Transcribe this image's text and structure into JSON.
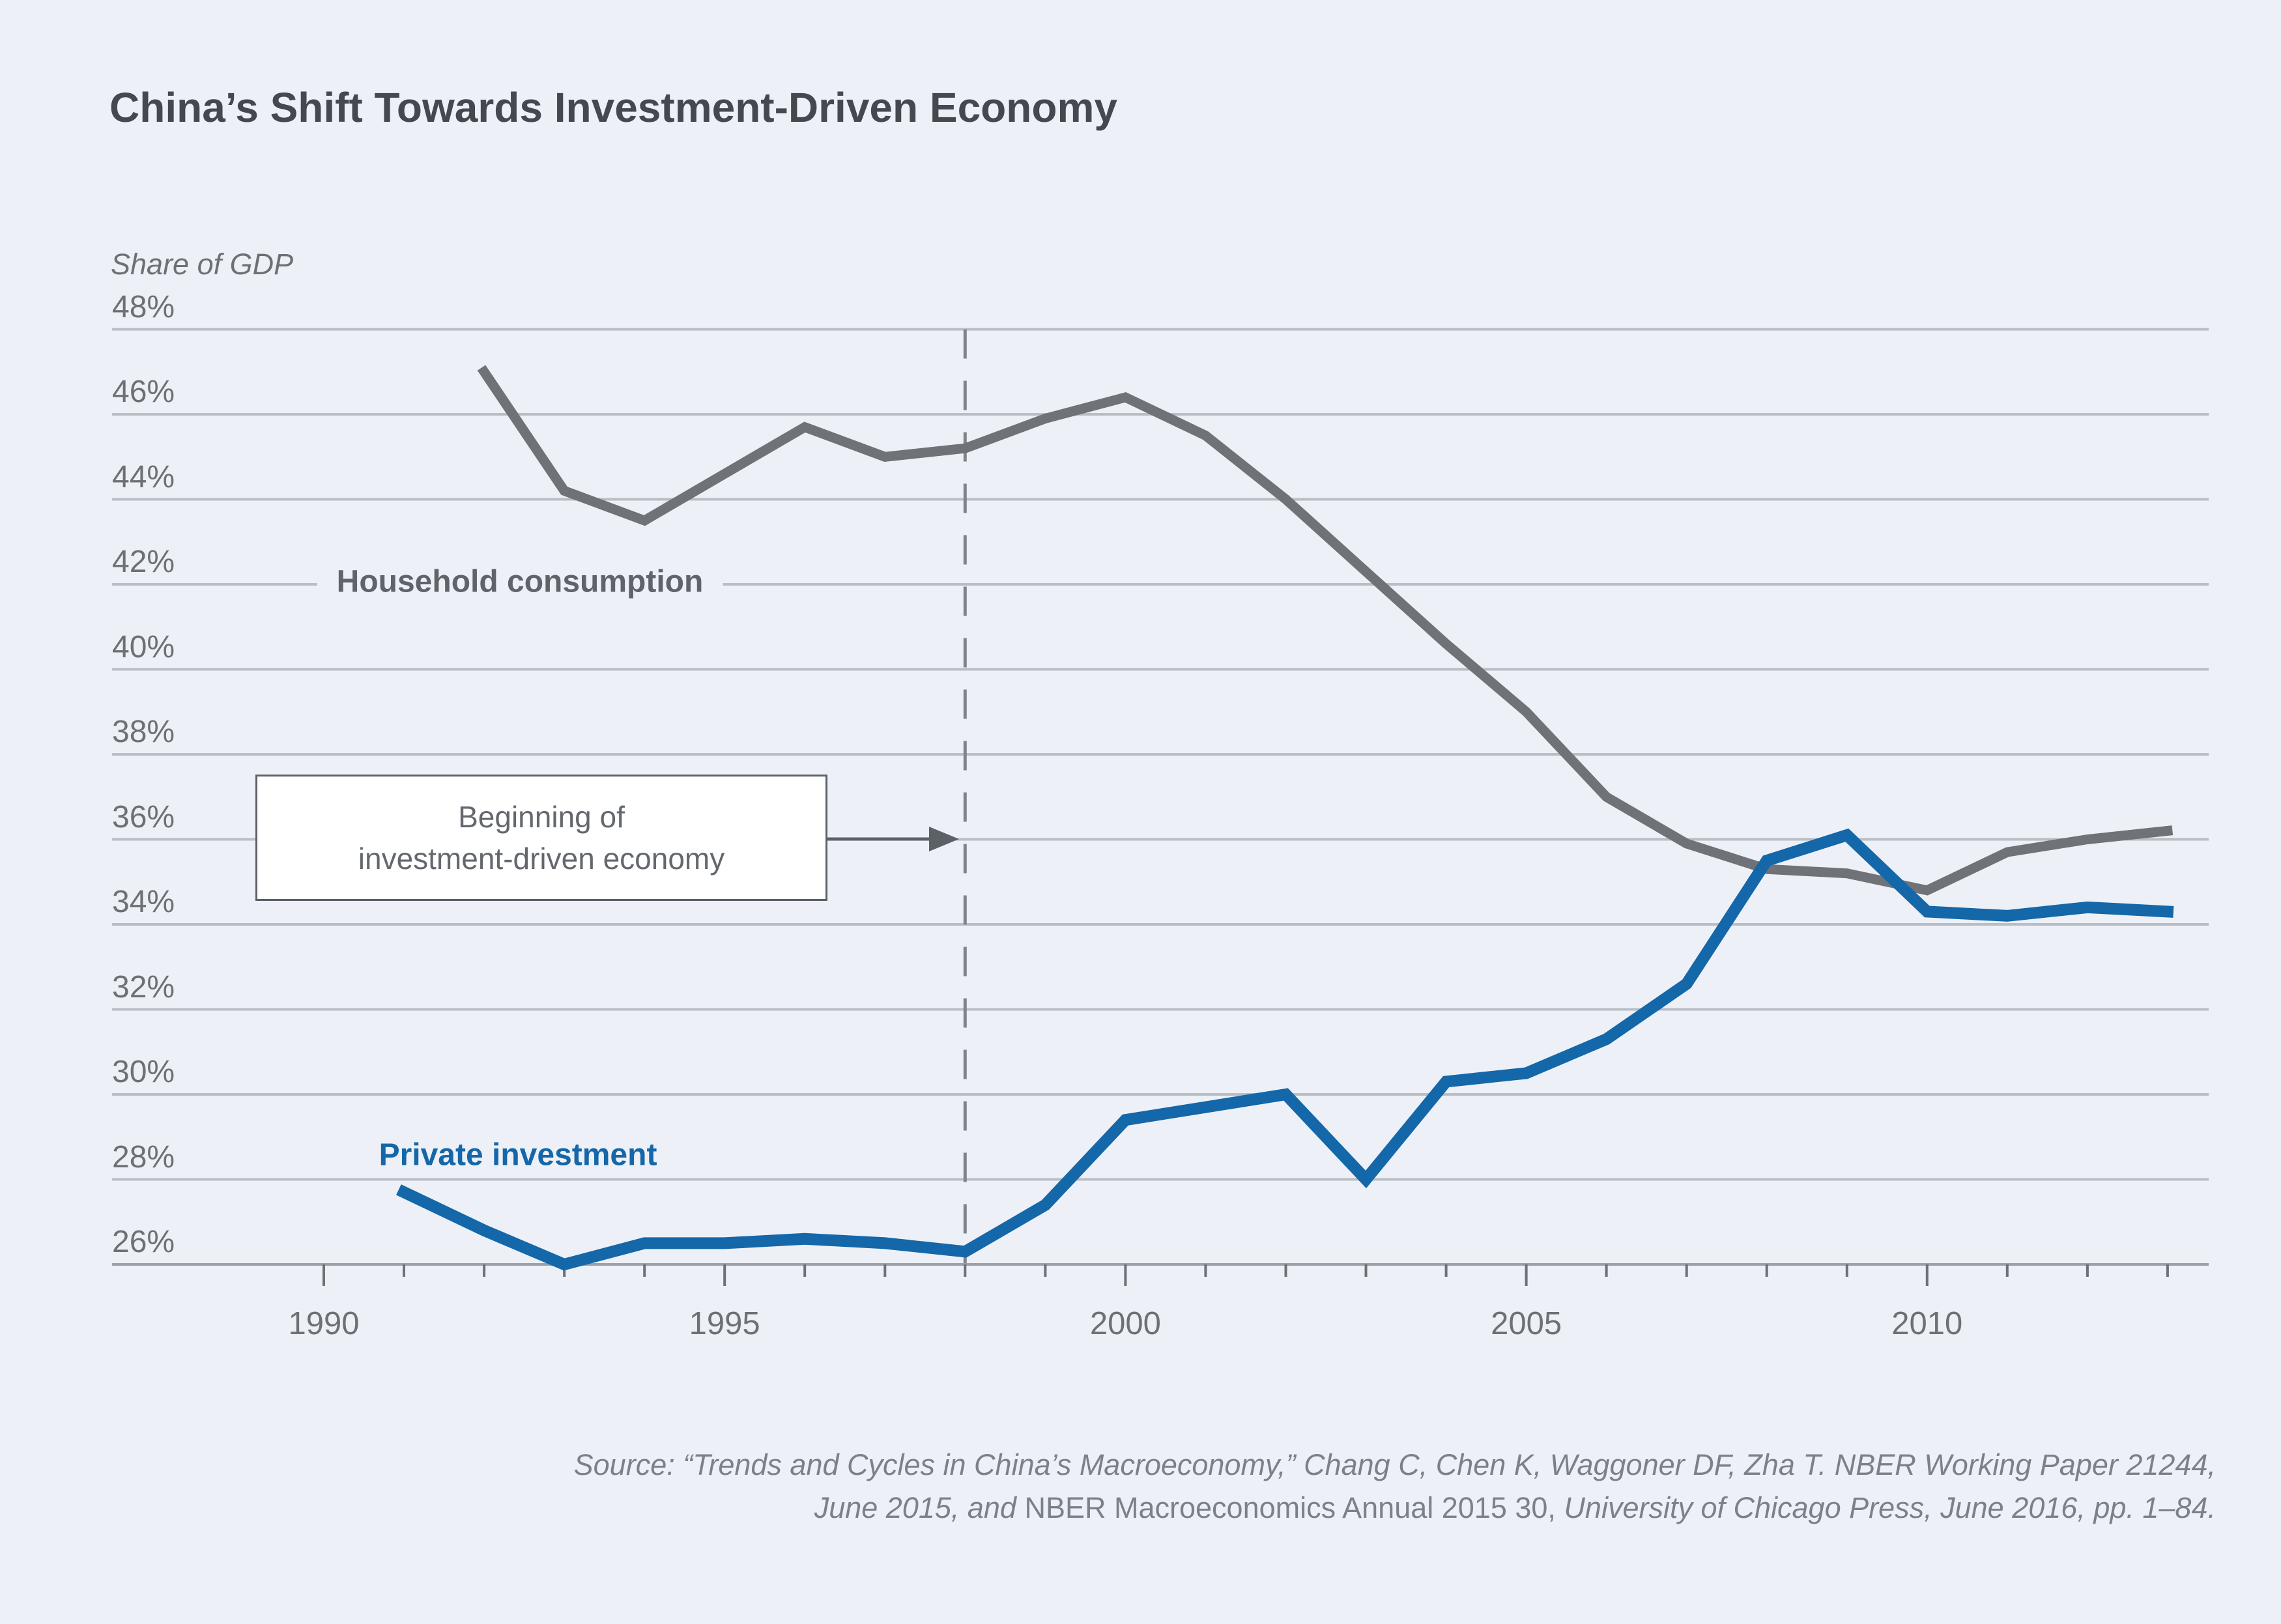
{
  "title": "China’s Shift Towards Investment-Driven Economy",
  "y_axis_caption": "Share of GDP",
  "labels": {
    "household": "Household consumption",
    "private": "Private investment"
  },
  "annotation": {
    "line1": "Beginning of",
    "line2": "investment-driven economy"
  },
  "source": {
    "line1": "Source: “Trends and Cycles in China’s Macroeconomy,” Chang C, Chen K, Waggoner DF, Zha T. NBER Working Paper 21244,",
    "line2_parts": [
      {
        "text": "June 2015, and ",
        "italic": true
      },
      {
        "text": "NBER Macroeconomics Annual 2015 30,",
        "italic": false
      },
      {
        "text": " University of Chicago Press, June 2016, pp. 1–84.",
        "italic": true
      }
    ]
  },
  "colors": {
    "background": "#edf1f7",
    "gridline": "#b9bec5",
    "axis": "#9aa1a8",
    "household_line": "#6f7377",
    "private_line": "#1467a8",
    "dashed_line": "#7d848c",
    "annotation_border": "#5c6167",
    "text_gray": "#6c7176",
    "title_color": "#45494f"
  },
  "chart_data": {
    "type": "line",
    "title": "China’s Shift Towards Investment-Driven Economy",
    "ylabel": "Share of GDP",
    "ylim": [
      26,
      48
    ],
    "y_tick_step": 2,
    "y_ticks": [
      48,
      46,
      44,
      42,
      40,
      38,
      36,
      34,
      32,
      30,
      28,
      26
    ],
    "y_tick_suffix": "%",
    "x_tick_years_minor": [
      1990,
      1991,
      1992,
      1993,
      1994,
      1995,
      1996,
      1997,
      1998,
      1999,
      2000,
      2001,
      2002,
      2003,
      2004,
      2005,
      2006,
      2007,
      2008,
      2009,
      2010,
      2011,
      2012,
      2013
    ],
    "x_tick_labels": [
      "1990",
      "1995",
      "2000",
      "2005",
      "2010"
    ],
    "x_labeled_years": [
      1990,
      1995,
      2000,
      2005,
      2010
    ],
    "grid": true,
    "legend_position": "inline-labels",
    "annotation_year": 1998,
    "series": [
      {
        "name": "Household consumption",
        "points": [
          [
            1992,
            47.0
          ],
          [
            1993,
            44.2
          ],
          [
            1994,
            43.5
          ],
          [
            1995,
            44.6
          ],
          [
            1996,
            45.7
          ],
          [
            1997,
            45.0
          ],
          [
            1998,
            45.2
          ],
          [
            1999,
            45.9
          ],
          [
            2000,
            46.4
          ],
          [
            2001,
            45.5
          ],
          [
            2002,
            44.0
          ],
          [
            2003,
            42.3
          ],
          [
            2004,
            40.6
          ],
          [
            2005,
            39.0
          ],
          [
            2006,
            37.0
          ],
          [
            2007,
            35.9
          ],
          [
            2008,
            35.3
          ],
          [
            2009,
            35.2
          ],
          [
            2010,
            34.8
          ],
          [
            2011,
            35.7
          ],
          [
            2012,
            36.0
          ],
          [
            2013,
            36.2
          ]
        ]
      },
      {
        "name": "Private investment",
        "points": [
          [
            1991,
            27.7
          ],
          [
            1992,
            26.8
          ],
          [
            1993,
            26.0
          ],
          [
            1994,
            26.5
          ],
          [
            1995,
            26.5
          ],
          [
            1996,
            26.6
          ],
          [
            1997,
            26.5
          ],
          [
            1998,
            26.3
          ],
          [
            1999,
            27.4
          ],
          [
            2000,
            29.4
          ],
          [
            2001,
            29.7
          ],
          [
            2002,
            30.0
          ],
          [
            2003,
            28.0
          ],
          [
            2004,
            30.3
          ],
          [
            2005,
            30.5
          ],
          [
            2006,
            31.3
          ],
          [
            2007,
            32.6
          ],
          [
            2008,
            35.5
          ],
          [
            2009,
            36.1
          ],
          [
            2010,
            34.3
          ],
          [
            2011,
            34.2
          ],
          [
            2012,
            34.4
          ],
          [
            2013,
            34.3
          ]
        ]
      }
    ]
  }
}
